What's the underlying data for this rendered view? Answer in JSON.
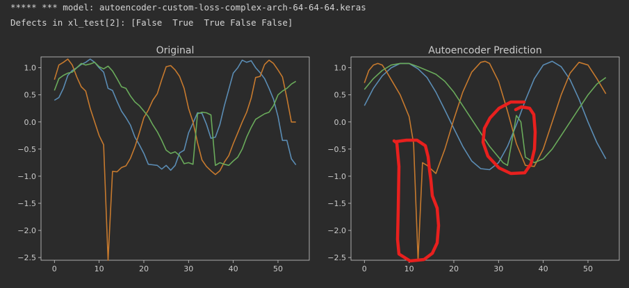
{
  "log": {
    "line1": "***** *** model: autoencoder-custom-loss-complex-arch-64-64-64.keras",
    "line2": "Defects in xl_test[2]: [False  True  True False False]"
  },
  "colors": {
    "blue": "#5b8db5",
    "orange": "#c77a2e",
    "green": "#6aab5b",
    "annotation": "#e8201e",
    "axes": "#cccccc"
  },
  "chart_data": [
    {
      "type": "line",
      "title": "Original",
      "xlim": [
        -3,
        57
      ],
      "ylim": [
        -2.55,
        1.2
      ],
      "xticks": [
        0,
        10,
        20,
        30,
        40,
        50
      ],
      "yticks": [
        1.0,
        0.5,
        0.0,
        -0.5,
        -1.0,
        -1.5,
        -2.0,
        -2.5
      ],
      "series": [
        {
          "color": "blue",
          "x": [
            0,
            1,
            2,
            3,
            4,
            5,
            6,
            7,
            8,
            9,
            10,
            11,
            12,
            13,
            14,
            15,
            16,
            17,
            18,
            19,
            20,
            21,
            22,
            23,
            24,
            25,
            26,
            27,
            28,
            29,
            30,
            31,
            32,
            33,
            34,
            35,
            36,
            37,
            38,
            39,
            40,
            41,
            42,
            43,
            44,
            45,
            46,
            47,
            48,
            49,
            50,
            51,
            52,
            53,
            54
          ],
          "y": [
            0.4,
            0.45,
            0.62,
            0.86,
            0.95,
            1.0,
            1.06,
            1.1,
            1.16,
            1.1,
            1.0,
            0.92,
            0.62,
            0.58,
            0.38,
            0.2,
            0.08,
            -0.06,
            -0.28,
            -0.42,
            -0.58,
            -0.78,
            -0.79,
            -0.8,
            -0.87,
            -0.8,
            -0.89,
            -0.8,
            -0.57,
            -0.52,
            -0.2,
            -0.02,
            0.17,
            0.16,
            -0.04,
            -0.3,
            -0.28,
            -0.05,
            0.3,
            0.6,
            0.9,
            1.0,
            1.14,
            1.1,
            1.13,
            1.0,
            0.91,
            0.8,
            0.62,
            0.42,
            0.1,
            -0.34,
            -0.34,
            -0.68,
            -0.79
          ]
        },
        {
          "color": "orange",
          "x": [
            0,
            1,
            2,
            3,
            4,
            5,
            6,
            7,
            8,
            9,
            10,
            11,
            12,
            13,
            14,
            15,
            16,
            17,
            18,
            19,
            20,
            21,
            22,
            23,
            24,
            25,
            26,
            27,
            28,
            29,
            30,
            31,
            32,
            33,
            34,
            35,
            36,
            37,
            38,
            39,
            40,
            41,
            42,
            43,
            44,
            45,
            46,
            47,
            48,
            49,
            50,
            51,
            52,
            53,
            54
          ],
          "y": [
            0.78,
            1.05,
            1.1,
            1.16,
            1.05,
            0.83,
            0.65,
            0.57,
            0.25,
            0.0,
            -0.25,
            -0.42,
            -2.55,
            -0.91,
            -0.92,
            -0.84,
            -0.81,
            -0.67,
            -0.46,
            -0.2,
            0.08,
            0.22,
            0.4,
            0.52,
            0.78,
            1.02,
            1.04,
            0.96,
            0.84,
            0.62,
            0.25,
            0.0,
            -0.38,
            -0.7,
            -0.82,
            -0.9,
            -0.97,
            -0.9,
            -0.74,
            -0.62,
            -0.4,
            -0.2,
            0.0,
            0.18,
            0.44,
            0.82,
            0.84,
            1.06,
            1.14,
            1.08,
            0.96,
            0.83,
            0.44,
            0.0,
            0.0
          ]
        },
        {
          "color": "green",
          "x": [
            0,
            1,
            2,
            3,
            4,
            5,
            6,
            7,
            8,
            9,
            10,
            11,
            12,
            13,
            14,
            15,
            16,
            17,
            18,
            19,
            20,
            21,
            22,
            23,
            24,
            25,
            26,
            27,
            28,
            29,
            30,
            31,
            32,
            33,
            34,
            35,
            36,
            37,
            38,
            39,
            40,
            41,
            42,
            43,
            44,
            45,
            46,
            47,
            48,
            49,
            50,
            51,
            52,
            53,
            54
          ],
          "y": [
            0.58,
            0.8,
            0.86,
            0.9,
            0.92,
            1.0,
            1.08,
            1.05,
            1.07,
            1.1,
            1.02,
            0.98,
            1.03,
            0.94,
            0.8,
            0.65,
            0.62,
            0.48,
            0.37,
            0.3,
            0.2,
            0.1,
            -0.05,
            -0.18,
            -0.34,
            -0.52,
            -0.58,
            -0.55,
            -0.62,
            -0.77,
            -0.75,
            -0.78,
            0.15,
            0.18,
            0.17,
            0.13,
            -0.8,
            -0.75,
            -0.78,
            -0.8,
            -0.72,
            -0.65,
            -0.5,
            -0.28,
            -0.1,
            0.05,
            0.1,
            0.15,
            0.18,
            0.3,
            0.5,
            0.57,
            0.62,
            0.7,
            0.75
          ]
        }
      ]
    },
    {
      "type": "line",
      "title": "Autoencoder Prediction",
      "xlim": [
        -3,
        57
      ],
      "ylim": [
        -2.55,
        1.2
      ],
      "xticks": [
        0,
        10,
        20,
        30,
        40,
        50
      ],
      "yticks": [
        1.0,
        0.5,
        0.0,
        -0.5,
        -1.0,
        -1.5,
        -2.0,
        -2.5
      ],
      "series": [
        {
          "color": "blue",
          "x": [
            0,
            2,
            4,
            6,
            8,
            10,
            12,
            14,
            16,
            18,
            20,
            22,
            24,
            26,
            28,
            30,
            32,
            34,
            36,
            38,
            40,
            42,
            44,
            46,
            48,
            50,
            52,
            54
          ],
          "y": [
            0.3,
            0.62,
            0.85,
            1.0,
            1.08,
            1.08,
            0.98,
            0.82,
            0.55,
            0.22,
            -0.12,
            -0.45,
            -0.72,
            -0.86,
            -0.88,
            -0.75,
            -0.45,
            -0.05,
            0.4,
            0.8,
            1.05,
            1.12,
            1.02,
            0.78,
            0.42,
            0.0,
            -0.38,
            -0.68
          ]
        },
        {
          "color": "orange",
          "x": [
            0,
            1,
            2,
            3,
            4,
            5,
            6,
            8,
            10,
            11,
            12,
            13,
            14,
            16,
            18,
            20,
            22,
            24,
            26,
            27,
            28,
            30,
            32,
            34,
            36,
            38,
            40,
            42,
            44,
            46,
            48,
            50,
            52,
            54
          ],
          "y": [
            0.72,
            0.95,
            1.05,
            1.08,
            1.05,
            0.92,
            0.78,
            0.5,
            0.1,
            -0.4,
            -2.55,
            -0.75,
            -0.8,
            -0.95,
            -0.5,
            0.05,
            0.55,
            0.92,
            1.1,
            1.12,
            1.08,
            0.75,
            0.2,
            -0.4,
            -0.8,
            -0.82,
            -0.5,
            0.0,
            0.5,
            0.9,
            1.1,
            1.05,
            0.8,
            0.52
          ]
        },
        {
          "color": "green",
          "x": [
            0,
            2,
            4,
            6,
            8,
            10,
            12,
            14,
            16,
            18,
            20,
            22,
            24,
            26,
            28,
            30,
            31,
            32,
            33,
            34,
            35,
            36,
            38,
            40,
            42,
            44,
            46,
            48,
            50,
            52,
            54
          ],
          "y": [
            0.6,
            0.8,
            0.95,
            1.05,
            1.08,
            1.08,
            1.02,
            0.95,
            0.88,
            0.75,
            0.55,
            0.3,
            0.05,
            -0.2,
            -0.45,
            -0.65,
            -0.75,
            -0.8,
            -0.35,
            0.12,
            0.0,
            -0.65,
            -0.75,
            -0.68,
            -0.5,
            -0.25,
            0.0,
            0.25,
            0.5,
            0.7,
            0.82
          ]
        }
      ]
    }
  ]
}
